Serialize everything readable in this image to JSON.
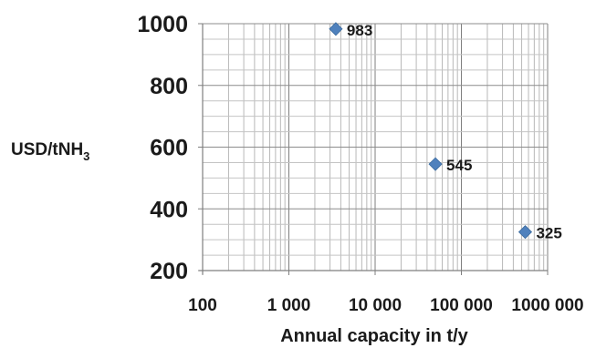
{
  "chart_data": {
    "type": "scatter",
    "title": "",
    "xlabel": "Annual capacity in t/y",
    "ylabel": {
      "main": "USD/tNH",
      "subscript": "3"
    },
    "x_scale": "log",
    "xlim": [
      100,
      1000000
    ],
    "ylim": [
      200,
      1000
    ],
    "x_ticks": [
      100,
      1000,
      10000,
      100000,
      1000000
    ],
    "x_tick_labels": [
      "100",
      "1 000",
      "10 000",
      "100 000",
      "1000 000"
    ],
    "y_ticks": [
      200,
      400,
      600,
      800,
      1000
    ],
    "y_tick_labels": [
      "200",
      "400",
      "600",
      "800",
      "1000"
    ],
    "grid": true,
    "marker_color": "#4f81bd",
    "points": [
      {
        "x": 3500,
        "y": 983,
        "label": "983"
      },
      {
        "x": 50000,
        "y": 545,
        "label": "545"
      },
      {
        "x": 550000,
        "y": 325,
        "label": "325"
      }
    ]
  }
}
